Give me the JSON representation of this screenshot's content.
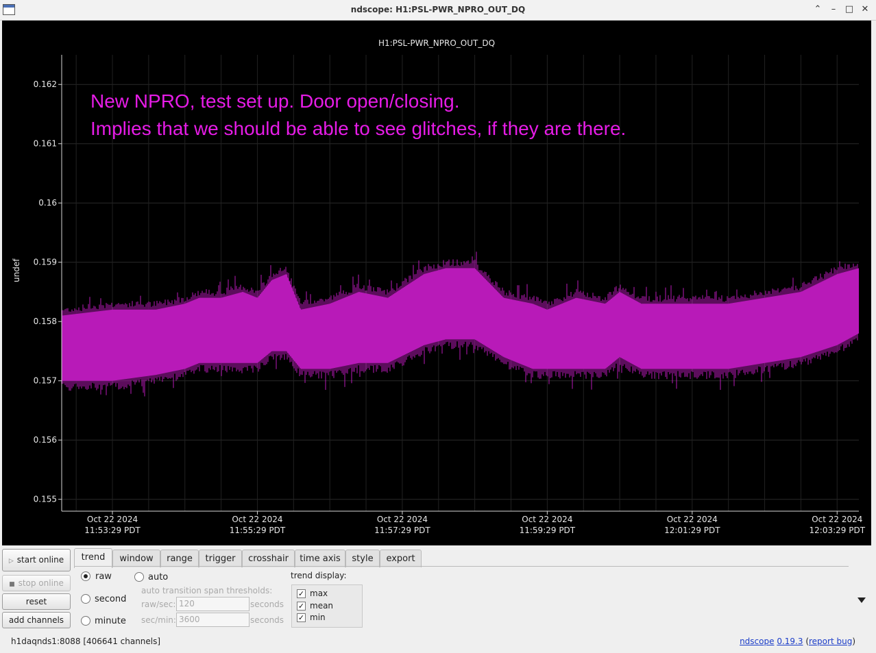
{
  "window": {
    "title": "ndscope: H1:PSL-PWR_NPRO_OUT_DQ"
  },
  "plot": {
    "title": "H1:PSL-PWR_NPRO_OUT_DQ",
    "ylabel": "undef",
    "annotation_lines": [
      "New NPRO, test set up.  Door open/closing.",
      "Implies that we should be able to see glitches, if they are there."
    ],
    "annotation_color": "#e61ce6",
    "trace_color": "#b81ab8"
  },
  "chart_data": {
    "type": "area",
    "title": "H1:PSL-PWR_NPRO_OUT_DQ",
    "xlabel": "",
    "ylabel": "undef",
    "ylim": [
      0.1548,
      0.1625
    ],
    "yticks": [
      0.155,
      0.156,
      0.157,
      0.158,
      0.159,
      0.16,
      0.161,
      0.162
    ],
    "ytick_labels": [
      "0.155",
      "0.156",
      "0.157",
      "0.158",
      "0.159",
      "0.16",
      "0.161",
      "0.162"
    ],
    "xlim_minutes": [
      -0.7,
      10.3
    ],
    "xticks_minutes": [
      0,
      2,
      4,
      6,
      8,
      10
    ],
    "xtick_labels": [
      [
        "Oct 22 2024",
        "11:53:29 PDT"
      ],
      [
        "Oct 22 2024",
        "11:55:29 PDT"
      ],
      [
        "Oct 22 2024",
        "11:57:29 PDT"
      ],
      [
        "Oct 22 2024",
        "11:59:29 PDT"
      ],
      [
        "Oct 22 2024",
        "12:01:29 PDT"
      ],
      [
        "Oct 22 2024",
        "12:03:29 PDT"
      ]
    ],
    "grid": true,
    "series": [
      {
        "values_note": "envelope",
        "x_minutes": [
          -0.7,
          0.0,
          0.6,
          1.0,
          1.2,
          1.5,
          1.8,
          2.0,
          2.2,
          2.4,
          2.6,
          3.0,
          3.4,
          3.8,
          4.3,
          4.6,
          5.0,
          5.4,
          5.8,
          6.0,
          6.4,
          6.8,
          7.0,
          7.3,
          7.6,
          8.0,
          8.5,
          9.0,
          9.5,
          10.0,
          10.3
        ],
        "max": [
          0.1581,
          0.1582,
          0.1582,
          0.1583,
          0.1584,
          0.1584,
          0.1585,
          0.1584,
          0.1587,
          0.1588,
          0.1582,
          0.1583,
          0.1585,
          0.1584,
          0.1588,
          0.1589,
          0.1589,
          0.1584,
          0.1583,
          0.1582,
          0.1584,
          0.1583,
          0.1585,
          0.1583,
          0.1583,
          0.1583,
          0.1583,
          0.1584,
          0.1585,
          0.1588,
          0.1589
        ],
        "mean": [
          0.1579,
          0.1579,
          0.158,
          0.158,
          0.1581,
          0.158,
          0.1581,
          0.158,
          0.1582,
          0.1582,
          0.1579,
          0.158,
          0.1581,
          0.158,
          0.1583,
          0.1584,
          0.1584,
          0.1579,
          0.1578,
          0.1578,
          0.1579,
          0.1578,
          0.158,
          0.1578,
          0.1578,
          0.1578,
          0.1578,
          0.1578,
          0.1579,
          0.1582,
          0.1583
        ],
        "min": [
          0.157,
          0.157,
          0.1571,
          0.1572,
          0.1573,
          0.1573,
          0.1573,
          0.1573,
          0.1575,
          0.1575,
          0.1572,
          0.1572,
          0.1573,
          0.1573,
          0.1576,
          0.1577,
          0.1577,
          0.1574,
          0.1572,
          0.1572,
          0.1572,
          0.1572,
          0.1574,
          0.1572,
          0.1572,
          0.1572,
          0.1572,
          0.1573,
          0.1574,
          0.1576,
          0.1578
        ]
      }
    ]
  },
  "side_buttons": {
    "start_online": "start online",
    "stop_online": "stop online",
    "reset": "reset",
    "add_channels": "add channels"
  },
  "tabs": [
    "trend",
    "window",
    "range",
    "trigger",
    "crosshair",
    "time axis",
    "style",
    "export"
  ],
  "trend_tab": {
    "raw": "raw",
    "second": "second",
    "minute": "minute",
    "auto": "auto",
    "thresholds_label": "auto transition span thresholds:",
    "raw_sec_label": "raw/sec:",
    "raw_sec_value": "120",
    "sec_min_label": "sec/min:",
    "sec_min_value": "3600",
    "seconds_label": "seconds",
    "trend_display_label": "trend display:",
    "max": "max",
    "mean": "mean",
    "min": "min",
    "check_mark": "✓"
  },
  "status": {
    "server": "h1daqnds1:8088  [406641 channels]",
    "app_link": "ndscope",
    "version": "0.19.3",
    "open_paren": " (",
    "report_bug": "report bug",
    "close_paren": ")"
  }
}
